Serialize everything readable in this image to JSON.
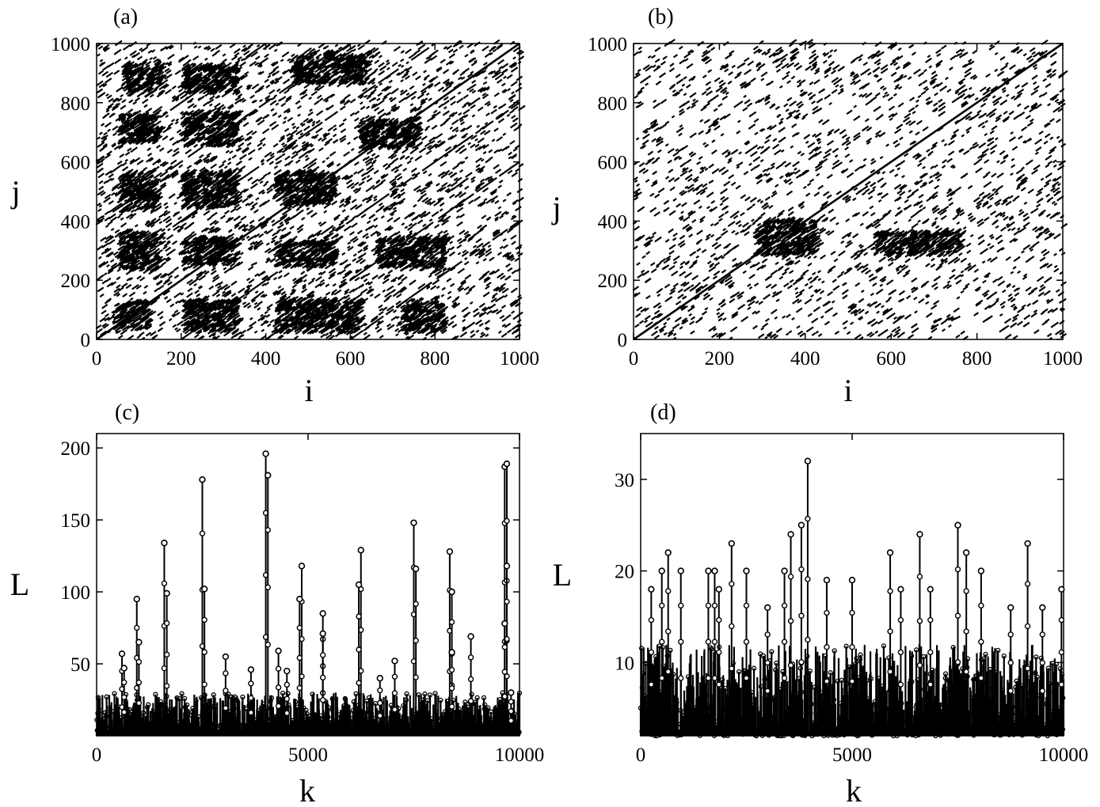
{
  "chart_data": [
    {
      "panel_label": "(a)",
      "type": "scatter",
      "subtype": "recurrence-plot",
      "xlabel": "i",
      "ylabel": "j",
      "xlim": [
        0,
        1000
      ],
      "ylim": [
        0,
        1000
      ],
      "xticks": [
        "0",
        "200",
        "400",
        "600",
        "800",
        "1000"
      ],
      "yticks": [
        "0",
        "200",
        "400",
        "600",
        "800",
        "1000"
      ],
      "main_diagonal": true,
      "parallel_diagonal_offsets": [
        -600,
        -400,
        -200,
        200,
        400,
        600
      ],
      "dense_blocks": [
        [
          40,
          30,
          120,
          120
        ],
        [
          200,
          20,
          330,
          130
        ],
        [
          420,
          20,
          620,
          130
        ],
        [
          720,
          20,
          820,
          120
        ],
        [
          50,
          230,
          140,
          360
        ],
        [
          200,
          250,
          330,
          340
        ],
        [
          420,
          240,
          560,
          330
        ],
        [
          660,
          240,
          820,
          340
        ],
        [
          50,
          430,
          140,
          560
        ],
        [
          200,
          440,
          330,
          560
        ],
        [
          420,
          450,
          560,
          560
        ],
        [
          50,
          660,
          140,
          760
        ],
        [
          200,
          650,
          330,
          760
        ],
        [
          620,
          640,
          760,
          740
        ],
        [
          60,
          820,
          150,
          930
        ],
        [
          200,
          830,
          330,
          920
        ],
        [
          460,
          860,
          640,
          960
        ]
      ],
      "point_density": 0.1,
      "point_color": "#000000"
    },
    {
      "panel_label": "(b)",
      "type": "scatter",
      "subtype": "recurrence-plot",
      "xlabel": "i",
      "ylabel": "j",
      "xlim": [
        0,
        1000
      ],
      "ylim": [
        0,
        1000
      ],
      "xticks": [
        "0",
        "200",
        "400",
        "600",
        "800",
        "1000"
      ],
      "yticks": [
        "0",
        "200",
        "400",
        "600",
        "800",
        "1000"
      ],
      "main_diagonal": true,
      "parallel_diagonal_offsets": [],
      "dense_blocks": [
        [
          280,
          280,
          420,
          400
        ],
        [
          560,
          280,
          760,
          360
        ]
      ],
      "point_density": 0.07,
      "point_color": "#000000"
    },
    {
      "panel_label": "(c)",
      "type": "line",
      "subtype": "impulse-with-markers",
      "xlabel": "k",
      "ylabel": "L",
      "xlim": [
        0,
        10000
      ],
      "ylim": [
        0,
        210
      ],
      "xticks": [
        "0",
        "5000",
        "10000"
      ],
      "ytick_values": [
        50,
        100,
        150,
        200
      ],
      "yticks": [
        "50",
        "100",
        "150",
        "200"
      ],
      "baseline_range": [
        2,
        30
      ],
      "peaks": [
        [
          600,
          57
        ],
        [
          650,
          47
        ],
        [
          950,
          95
        ],
        [
          1000,
          65
        ],
        [
          1600,
          134
        ],
        [
          1660,
          99
        ],
        [
          2500,
          178
        ],
        [
          2550,
          102
        ],
        [
          3050,
          55
        ],
        [
          3650,
          46
        ],
        [
          4000,
          196
        ],
        [
          4050,
          181
        ],
        [
          4300,
          59
        ],
        [
          4500,
          45
        ],
        [
          4850,
          118
        ],
        [
          4800,
          95
        ],
        [
          5350,
          85
        ],
        [
          5350,
          71
        ],
        [
          6250,
          129
        ],
        [
          6200,
          105
        ],
        [
          6700,
          40
        ],
        [
          7050,
          52
        ],
        [
          7500,
          148
        ],
        [
          7550,
          116
        ],
        [
          8350,
          128
        ],
        [
          8400,
          100
        ],
        [
          8400,
          58
        ],
        [
          8850,
          69
        ],
        [
          9650,
          187
        ],
        [
          9700,
          189
        ],
        [
          9700,
          118
        ],
        [
          9650,
          78
        ],
        [
          9800,
          30
        ]
      ],
      "marker": "open-circle",
      "color": "#000000"
    },
    {
      "panel_label": "(d)",
      "type": "line",
      "subtype": "impulse-with-markers",
      "xlabel": "k",
      "ylabel": "L",
      "xlim": [
        0,
        10000
      ],
      "ylim": [
        2,
        35
      ],
      "xticks": [
        "0",
        "5000",
        "10000"
      ],
      "ytick_values": [
        10,
        20,
        30
      ],
      "yticks": [
        "10",
        "20",
        "30"
      ],
      "baseline_range": [
        2,
        12
      ],
      "peaks": [
        [
          3950,
          32
        ],
        [
          3800,
          25
        ],
        [
          3550,
          24
        ],
        [
          7500,
          25
        ],
        [
          2150,
          23
        ],
        [
          9150,
          23
        ],
        [
          6600,
          24
        ],
        [
          5900,
          22
        ],
        [
          650,
          22
        ],
        [
          7700,
          22
        ],
        [
          8050,
          20
        ],
        [
          1600,
          20
        ],
        [
          1750,
          20
        ],
        [
          2500,
          20
        ],
        [
          3400,
          20
        ],
        [
          500,
          20
        ],
        [
          950,
          20
        ],
        [
          5000,
          19
        ],
        [
          4400,
          19
        ],
        [
          6150,
          18
        ],
        [
          6850,
          18
        ],
        [
          9950,
          18
        ],
        [
          250,
          18
        ],
        [
          1850,
          18
        ],
        [
          3000,
          16
        ],
        [
          9500,
          16
        ],
        [
          8750,
          16
        ]
      ],
      "marker": "open-circle",
      "color": "#000000"
    }
  ]
}
